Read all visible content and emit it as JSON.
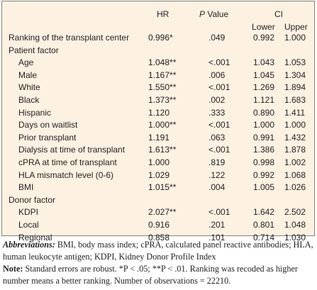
{
  "table": {
    "headers": {
      "hr": "HR",
      "p_italic": "P",
      "p_rest": " Value",
      "ci": "CI",
      "lower": "Lower",
      "upper": "Upper"
    },
    "rows": [
      {
        "label": "Ranking of the transplant center",
        "indent": false,
        "hr": "0.996*",
        "p": ".049",
        "lower": "0.992",
        "upper": "1.000"
      },
      {
        "label": "Patient factor",
        "indent": false,
        "hr": "",
        "p": "",
        "lower": "",
        "upper": ""
      },
      {
        "label": "Age",
        "indent": true,
        "hr": "1.048**",
        "p": "<.001",
        "lower": "1.043",
        "upper": "1.053"
      },
      {
        "label": "Male",
        "indent": true,
        "hr": "1.167**",
        "p": ".006",
        "lower": "1.045",
        "upper": "1.304"
      },
      {
        "label": "White",
        "indent": true,
        "hr": "1.550**",
        "p": "<.001",
        "lower": "1.269",
        "upper": "1.894"
      },
      {
        "label": "Black",
        "indent": true,
        "hr": "1.373**",
        "p": ".002",
        "lower": "1.121",
        "upper": "1.683"
      },
      {
        "label": "Hispanic",
        "indent": true,
        "hr": "1.120",
        "p": ".333",
        "lower": "0.890",
        "upper": "1.411"
      },
      {
        "label": "Days on waitlist",
        "indent": true,
        "hr": "1.000**",
        "p": "<.001",
        "lower": "1.000",
        "upper": "1.000"
      },
      {
        "label": "Prior transplant",
        "indent": true,
        "hr": "1.191",
        "p": ".063",
        "lower": "0.991",
        "upper": "1.432"
      },
      {
        "label": "Dialysis at time of transplant",
        "indent": true,
        "hr": "1.613**",
        "p": "<.001",
        "lower": "1.386",
        "upper": "1.878"
      },
      {
        "label": "cPRA at time of transplant",
        "indent": true,
        "hr": "1.000",
        "p": ".819",
        "lower": "0.998",
        "upper": "1.002"
      },
      {
        "label": "HLA mismatch level (0-6)",
        "indent": true,
        "hr": "1.029",
        "p": ".122",
        "lower": "0.992",
        "upper": "1.068"
      },
      {
        "label": "BMI",
        "indent": true,
        "hr": "1.015**",
        "p": ".004",
        "lower": "1.005",
        "upper": "1.026"
      },
      {
        "label": "Donor factor",
        "indent": false,
        "hr": "",
        "p": "",
        "lower": "",
        "upper": ""
      },
      {
        "label": "KDPI",
        "indent": true,
        "hr": "2.027**",
        "p": "<.001",
        "lower": "1.642",
        "upper": "2.502"
      },
      {
        "label": "Local",
        "indent": true,
        "hr": "0.916",
        "p": ".201",
        "lower": "0.801",
        "upper": "1.048"
      },
      {
        "label": "Regional",
        "indent": true,
        "hr": "0.858",
        "p": ".101",
        "lower": "0.714",
        "upper": "1.030"
      }
    ]
  },
  "footnote": {
    "abbr_title": "Abbreviations:",
    "abbr_text": " BMI, body mass index; cPRA, calculated panel reactive antibodies; HLA, human leukocyte antigen; KDPI, Kidney Donor Profile Index",
    "note_title": "Note:",
    "note_text": " Standard errors are robust. *P < .05; **P < .01. Ranking was recoded as higher number means a better ranking. Number of observations = 22210."
  },
  "colors": {
    "table_background": "#fdf1e2",
    "border": "#8a7f74",
    "text": "#231f20"
  }
}
